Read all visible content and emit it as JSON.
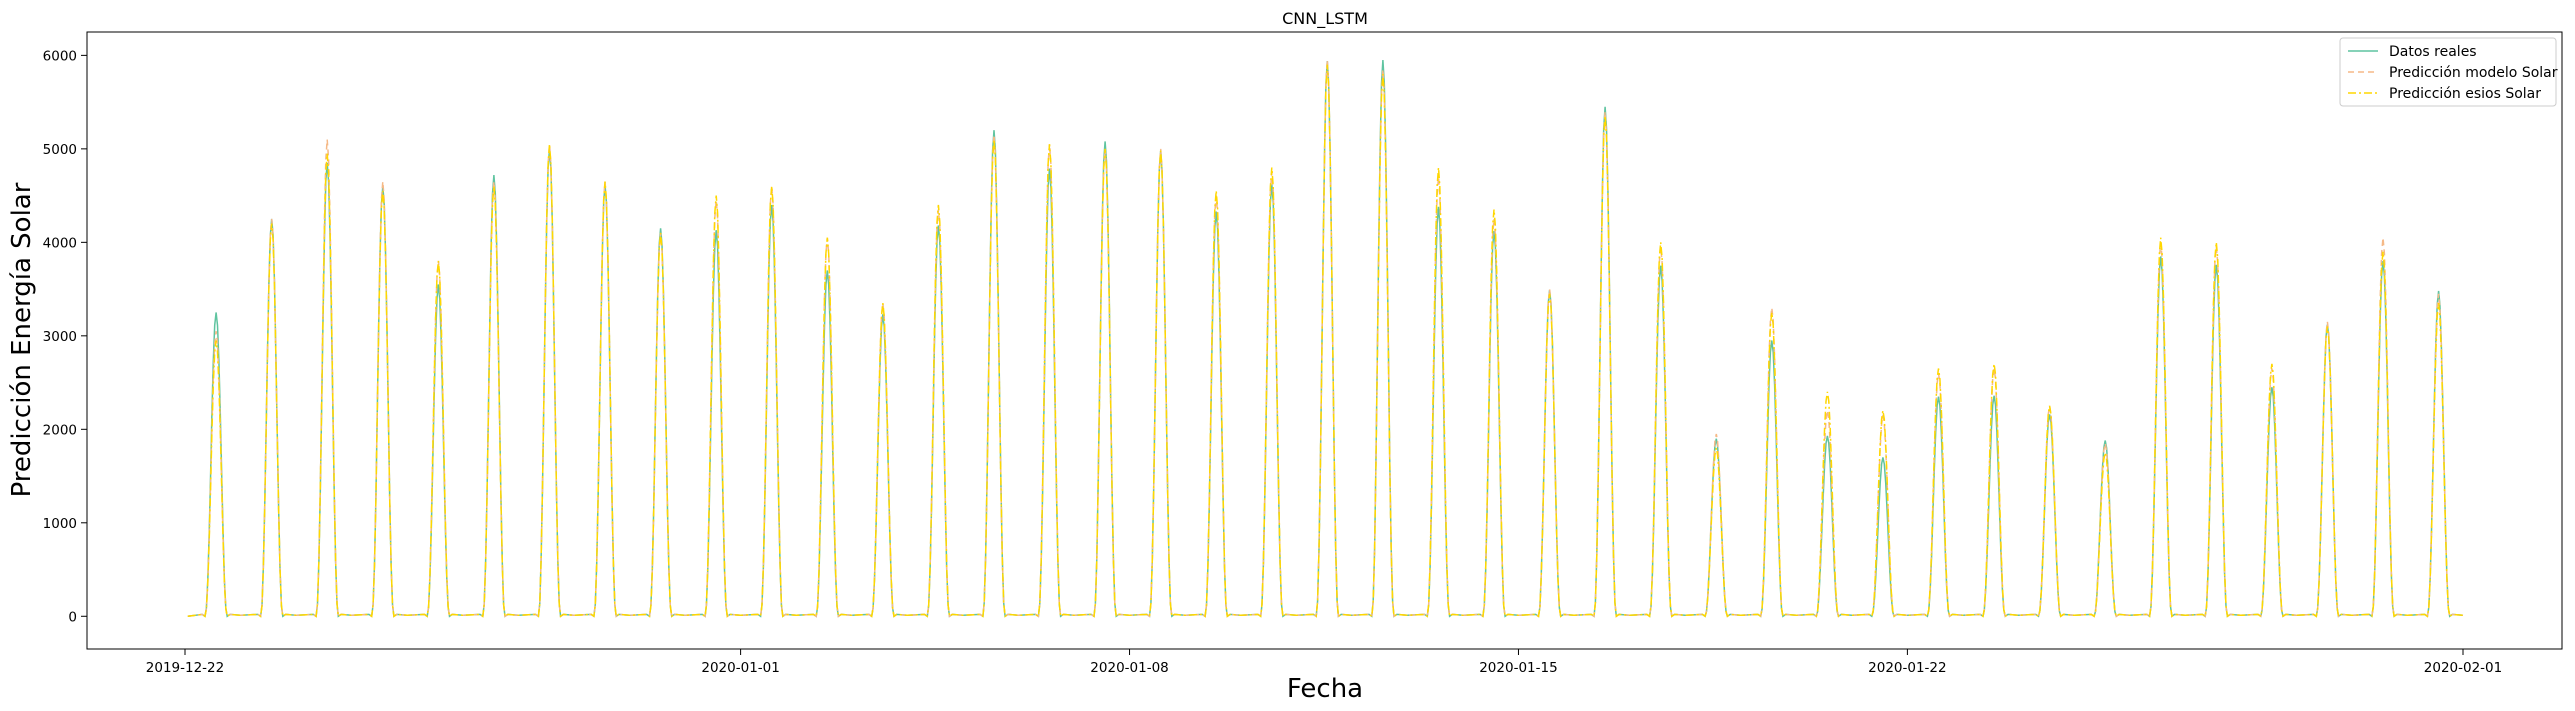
{
  "chart_data": {
    "type": "line",
    "title": "CNN_LSTM",
    "xlabel": "Fecha",
    "ylabel": "Predicción Energía Solar",
    "x_ticks": [
      "2019-12-22",
      "2020-01-01",
      "2020-01-08",
      "2020-01-15",
      "2020-01-22",
      "2020-02-01"
    ],
    "y_ticks": [
      0,
      1000,
      2000,
      3000,
      4000,
      5000,
      6000
    ],
    "xlim": [
      "2019-12-22",
      "2020-02-01"
    ],
    "ylim": [
      -350,
      6250
    ],
    "grid": false,
    "legend_position": "top-right",
    "x_start_date": "2019-12-22",
    "daily_peaks_dates": [
      "2019-12-22",
      "2019-12-23",
      "2019-12-24",
      "2019-12-25",
      "2019-12-26",
      "2019-12-27",
      "2019-12-28",
      "2019-12-29",
      "2019-12-30",
      "2019-12-31",
      "2020-01-01",
      "2020-01-02",
      "2020-01-03",
      "2020-01-04",
      "2020-01-05",
      "2020-01-06",
      "2020-01-07",
      "2020-01-08",
      "2020-01-09",
      "2020-01-10",
      "2020-01-11",
      "2020-01-12",
      "2020-01-13",
      "2020-01-14",
      "2020-01-15",
      "2020-01-16",
      "2020-01-17",
      "2020-01-18",
      "2020-01-19",
      "2020-01-20",
      "2020-01-21",
      "2020-01-22",
      "2020-01-23",
      "2020-01-24",
      "2020-01-25",
      "2020-01-26",
      "2020-01-27",
      "2020-01-28",
      "2020-01-29",
      "2020-01-30",
      "2020-01-31"
    ],
    "series": [
      {
        "name": "Datos reales",
        "color": "#5fc4a0",
        "dash": "solid",
        "values": [
          3250,
          4250,
          4850,
          4600,
          3550,
          4720,
          5000,
          4620,
          4150,
          4130,
          4400,
          3700,
          3230,
          4180,
          5200,
          4790,
          5080,
          4980,
          4330,
          4620,
          5940,
          5950,
          4380,
          4120,
          3490,
          5450,
          3750,
          1900,
          2950,
          1930,
          1700,
          2350,
          2360,
          2160,
          1880,
          3850,
          3760,
          2450,
          3120,
          3800,
          3480
        ]
      },
      {
        "name": "Predicción modelo Solar",
        "color": "#f5b987",
        "dash": "dashed",
        "values": [
          3050,
          4250,
          5100,
          4650,
          3800,
          4650,
          5050,
          4650,
          4100,
          4450,
          4600,
          4050,
          3350,
          4350,
          5150,
          5050,
          5000,
          5000,
          4500,
          4750,
          5950,
          5850,
          4700,
          4250,
          3500,
          5400,
          3950,
          1950,
          3300,
          2200,
          2150,
          2600,
          2650,
          2250,
          1850,
          4000,
          3950,
          2650,
          3150,
          4050,
          3450
        ]
      },
      {
        "name": "Predicción esios Solar",
        "color": "#ffd700",
        "dash": "dashdot",
        "values": [
          2950,
          4200,
          4950,
          4550,
          3800,
          4600,
          5050,
          4650,
          4100,
          4500,
          4600,
          4050,
          3350,
          4400,
          5100,
          5050,
          5000,
          4980,
          4550,
          4800,
          5900,
          5800,
          4800,
          4350,
          3450,
          5350,
          4000,
          1800,
          3250,
          2400,
          2200,
          2650,
          2700,
          2250,
          1750,
          4050,
          4000,
          2700,
          3100,
          3900,
          3350
        ]
      }
    ]
  }
}
